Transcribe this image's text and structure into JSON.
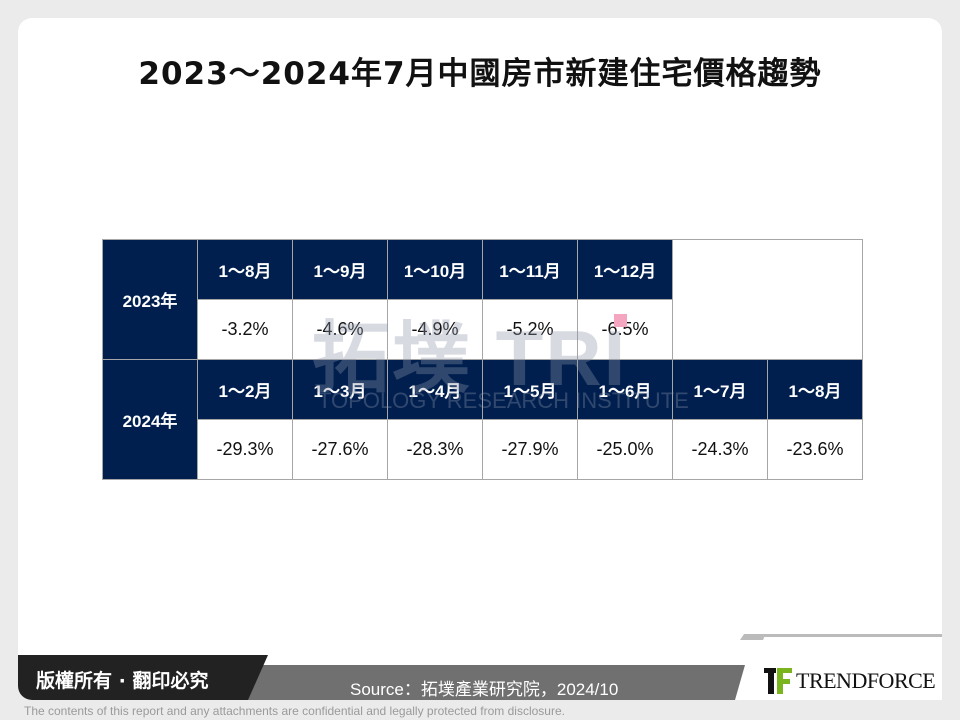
{
  "title": "2023～2024年7月中國房市新建住宅價格趨勢",
  "watermark": {
    "main": "拓墣 TRI",
    "sub": "TOPOLOGY RESEARCH INSTITUTE"
  },
  "table": {
    "rows": [
      {
        "year": "2023年",
        "headers": [
          "1～8月",
          "1～9月",
          "1～10月",
          "1～11月",
          "1～12月"
        ],
        "values": [
          "-3.2%",
          "-4.6%",
          "-4.9%",
          "-5.2%",
          "-6.5%"
        ]
      },
      {
        "year": "2024年",
        "headers": [
          "1～2月",
          "1～3月",
          "1～4月",
          "1～5月",
          "1～6月",
          "1～7月",
          "1～8月"
        ],
        "values": [
          "-29.3%",
          "-27.6%",
          "-28.3%",
          "-27.9%",
          "-25.0%",
          "-24.3%",
          "-23.6%"
        ]
      }
    ]
  },
  "footer": {
    "copyright": "版權所有 · 翻印必究",
    "source": "Source：拓墣產業研究院，2024/10",
    "brand": "TRENDFORCE",
    "disclaimer": "The contents of this report and any attachments are confidential and legally protected from disclosure."
  },
  "colors": {
    "header_bg": "#001f4f",
    "logo_green": "#7ab51d"
  }
}
